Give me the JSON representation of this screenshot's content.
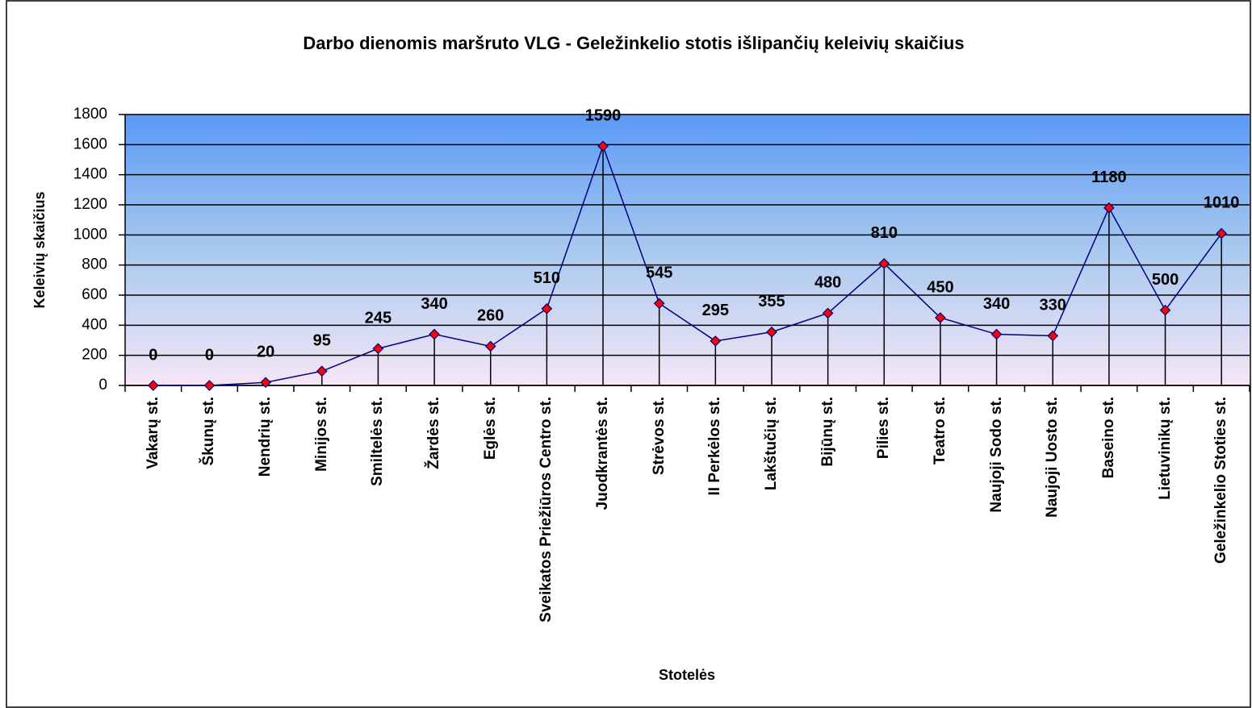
{
  "chart_data": {
    "type": "line",
    "title": "Darbo dienomis maršruto VLG - Geležinkelio stotis išlipančių keleivių skaičius",
    "x_label": "Stotelės",
    "y_label": "Keleivių skaičius",
    "categories": [
      "Vakarų st.",
      "Škunų st.",
      "Nendrių st.",
      "Minijos st.",
      "Smiltelės st.",
      "Žardės st.",
      "Eglės st.",
      "Sveikatos Priežiūros Centro st.",
      "Juodkrantės st.",
      "Strėvos st.",
      "II Perkėlos st.",
      "Lakštučių st.",
      "Bijūnų st.",
      "Pilies st.",
      "Teatro st.",
      "Naujoji Sodo st.",
      "Naujoji Uosto st.",
      "Baseino st.",
      "Lietuvinikų st.",
      "Geležinkelio Stoties st."
    ],
    "series": [
      {
        "name": "Keleivių skaičius",
        "color": "#000080",
        "marker_color": "#ff0000",
        "values": [
          0,
          0,
          20,
          95,
          245,
          340,
          260,
          510,
          1590,
          545,
          295,
          355,
          480,
          810,
          450,
          340,
          330,
          1180,
          500,
          1010
        ]
      }
    ],
    "ylim": [
      0,
      1800
    ],
    "yticks": [
      0,
      200,
      400,
      600,
      800,
      1000,
      1200,
      1400,
      1600,
      1800
    ],
    "grid": true
  }
}
